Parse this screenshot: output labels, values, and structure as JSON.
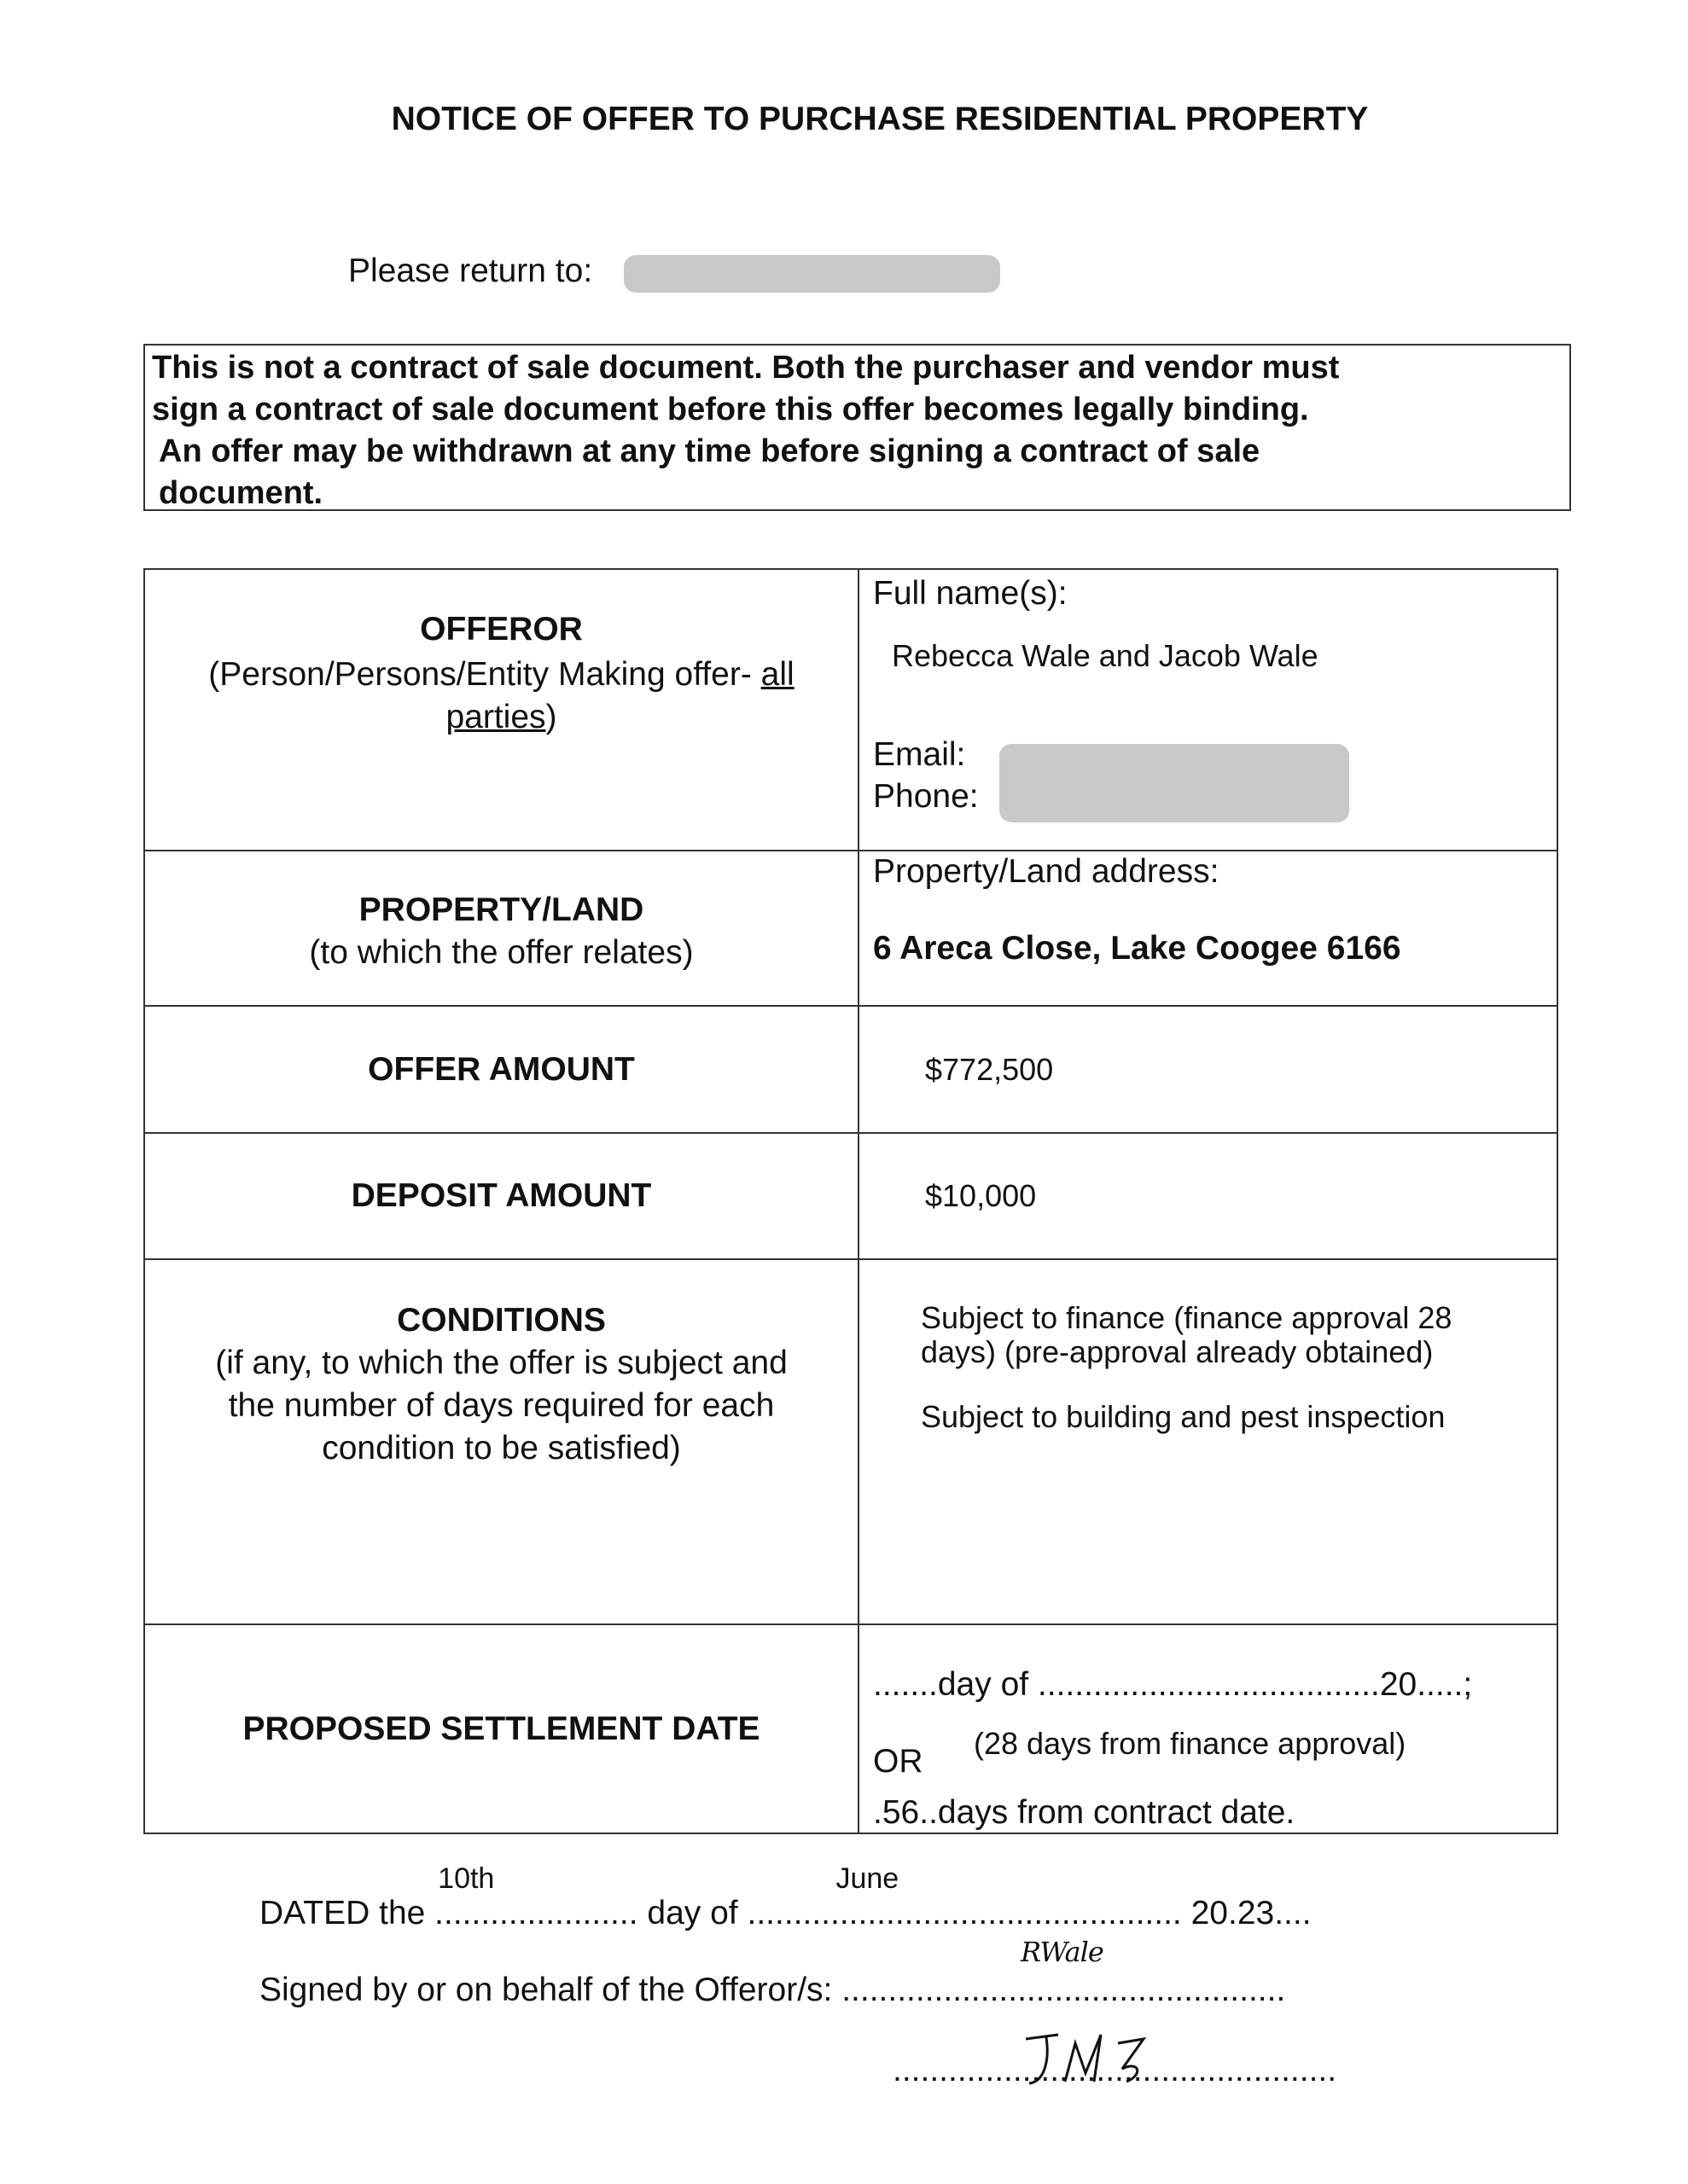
{
  "title": "NOTICE OF OFFER TO PURCHASE RESIDENTIAL PROPERTY",
  "return_label": "Please return to:",
  "notice": [
    "This is not a contract of sale document. Both the purchaser and vendor must",
    "sign a contract of sale document before this offer becomes legally binding.",
    "An offer may be withdrawn at any time before signing a contract of sale",
    "document."
  ],
  "offeror": {
    "heading": "OFFEROR",
    "sub1": "(Person/Persons/Entity Making offer- ",
    "sub_underline1": "all",
    "sub_underline2": "parties",
    "sub_end": ")",
    "names_label": "Full name(s):",
    "names": "Rebecca Wale and Jacob Wale",
    "email_label": "Email:",
    "phone_label": "Phone:"
  },
  "property": {
    "heading": "PROPERTY/LAND",
    "sub": "(to which the offer relates)",
    "label": "Property/Land address:",
    "address": "6 Areca Close, Lake Coogee 6166"
  },
  "offer": {
    "heading": "OFFER AMOUNT",
    "value": "$772,500"
  },
  "deposit": {
    "heading": "DEPOSIT AMOUNT",
    "value": "$10,000"
  },
  "conditions": {
    "heading": "CONDITIONS",
    "sub": [
      "(if any, to which the offer is subject and",
      "the number of days required for each",
      "condition to be satisfied)"
    ],
    "items": [
      "Subject to finance (finance approval 28",
      "days) (pre-approval already obtained)",
      "Subject to building and pest inspection"
    ]
  },
  "settlement": {
    "heading": "PROPOSED SETTLEMENT DATE",
    "line1": ".......day of .....................................20.....;",
    "or": "OR",
    "note": "(28 days from finance approval)",
    "days": "56",
    "line3_pre": ".",
    "line3_post": "..days from contract date."
  },
  "footer": {
    "dated": "DATED the ",
    "dots1": "......................",
    "day": "10th",
    "day_of": " day of ",
    "dots2": "...............................................",
    "month": "June",
    "year_pre": " 20.",
    "year": "23",
    "year_post": "....",
    "signed": "Signed by or on behalf of the Offeror/s: ",
    "sig_dots": "................................................",
    "sig1": "RWale",
    "sig2": "JW"
  }
}
